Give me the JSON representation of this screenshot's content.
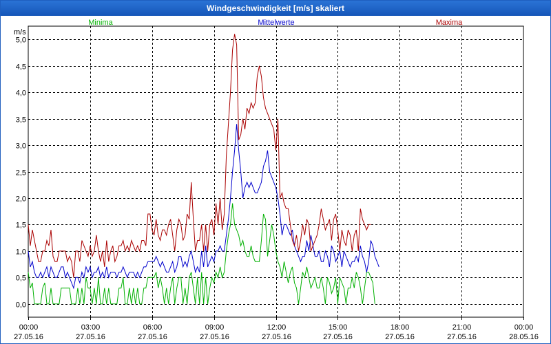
{
  "window": {
    "title": "Windgeschwindigkeit [m/s] skaliert"
  },
  "chart_data": {
    "type": "line",
    "title": "Windgeschwindigkeit [m/s] skaliert",
    "ylabel": "m/s",
    "ylim": [
      -0.25,
      5.25
    ],
    "yticks": [
      0.0,
      0.5,
      1.0,
      1.5,
      2.0,
      2.5,
      3.0,
      3.5,
      4.0,
      4.5,
      5.0
    ],
    "ytick_labels": [
      "0,0",
      "0,5",
      "1,0",
      "1,5",
      "2,0",
      "2,5",
      "3,0",
      "3,5",
      "4,0",
      "4,5",
      "5,0"
    ],
    "xlim_hours": [
      0,
      24
    ],
    "xticks_hours": [
      0,
      3,
      6,
      9,
      12,
      15,
      18,
      21,
      24
    ],
    "xtick_times": [
      "00:00",
      "03:00",
      "06:00",
      "09:00",
      "12:00",
      "15:00",
      "18:00",
      "21:00",
      "00:00"
    ],
    "xtick_dates": [
      "27.05.16",
      "27.05.16",
      "27.05.16",
      "27.05.16",
      "27.05.16",
      "27.05.16",
      "27.05.16",
      "27.05.16",
      "28.05.16"
    ],
    "grid": true,
    "legend_position": "top",
    "x_step_hours": 0.1,
    "series": [
      {
        "name": "Minima",
        "color": "#00b000",
        "values": [
          0.6,
          0.3,
          0.4,
          0.0,
          0.0,
          0.0,
          0.0,
          0.3,
          0.4,
          0.0,
          0.0,
          0.3,
          0.0,
          0.0,
          0.0,
          0.0,
          0.3,
          0.3,
          0.3,
          0.3,
          0.3,
          0.0,
          0.0,
          0.0,
          0.3,
          0.0,
          0.3,
          0.0,
          0.5,
          0.3,
          0.3,
          0.0,
          0.3,
          0.0,
          0.5,
          0.0,
          0.0,
          0.3,
          0.0,
          0.3,
          0.0,
          0.0,
          0.0,
          0.0,
          0.3,
          0.3,
          0.5,
          0.0,
          0.0,
          0.3,
          0.0,
          0.3,
          0.0,
          0.3,
          0.0,
          0.0,
          0.3,
          0.3,
          0.5,
          0.5,
          0.5,
          0.5,
          0.6,
          0.3,
          0.5,
          0.3,
          0.0,
          0.3,
          0.0,
          0.3,
          0.5,
          0.0,
          0.3,
          0.5,
          0.5,
          0.0,
          0.3,
          0.0,
          0.5,
          0.6,
          0.3,
          0.0,
          0.5,
          0.0,
          0.6,
          0.0,
          0.5,
          0.0,
          0.3,
          0.5,
          0.4,
          0.6,
          0.5,
          0.7,
          0.5,
          0.6,
          1.0,
          1.3,
          1.5,
          1.9,
          1.5,
          1.4,
          1.3,
          1.1,
          1.2,
          1.0,
          0.9,
          0.9,
          1.1,
          0.9,
          0.8,
          0.8,
          0.8,
          1.2,
          1.7,
          1.6,
          0.9,
          1.2,
          1.5,
          1.3,
          1.0,
          0.8,
          0.7,
          0.5,
          0.8,
          0.6,
          0.4,
          0.6,
          0.7,
          0.4,
          0.3,
          0.0,
          0.3,
          0.6,
          0.5,
          0.7,
          0.5,
          0.3,
          0.4,
          0.5,
          0.3,
          0.3,
          0.5,
          0.3,
          0.0,
          0.5,
          0.4,
          0.2,
          0.3,
          0.5,
          0.0,
          0.5,
          0.4,
          0.3,
          0.0,
          0.3,
          0.3,
          0.5,
          0.3,
          0.6,
          0.5,
          0.3,
          0.0,
          0.3,
          0.6,
          0.6,
          0.5,
          0.4,
          0.0
        ]
      },
      {
        "name": "Mittelwerte",
        "color": "#0000cc",
        "values": [
          1.0,
          0.7,
          0.8,
          0.6,
          0.5,
          0.5,
          0.6,
          0.5,
          0.6,
          0.7,
          0.5,
          0.7,
          0.6,
          0.5,
          0.5,
          0.6,
          0.7,
          0.7,
          0.5,
          0.6,
          0.5,
          0.4,
          0.3,
          0.5,
          0.5,
          0.4,
          0.6,
          0.5,
          0.7,
          0.6,
          0.7,
          0.5,
          0.6,
          0.6,
          0.7,
          0.5,
          0.6,
          0.5,
          0.7,
          0.5,
          0.6,
          0.6,
          0.6,
          0.5,
          0.6,
          0.6,
          0.7,
          0.6,
          0.5,
          0.6,
          0.6,
          0.6,
          0.5,
          0.6,
          0.5,
          0.6,
          0.7,
          0.7,
          0.8,
          0.8,
          0.8,
          0.8,
          0.9,
          0.8,
          0.7,
          0.8,
          0.7,
          0.6,
          0.6,
          0.7,
          0.8,
          0.6,
          0.7,
          0.9,
          0.9,
          0.7,
          0.8,
          0.7,
          0.9,
          1.0,
          0.8,
          0.6,
          0.7,
          0.6,
          1.0,
          0.7,
          1.1,
          0.7,
          0.8,
          0.9,
          0.8,
          1.0,
          1.0,
          1.1,
          1.0,
          1.0,
          1.3,
          1.6,
          2.0,
          2.5,
          2.9,
          3.4,
          2.9,
          2.5,
          2.0,
          2.2,
          2.3,
          2.2,
          2.3,
          2.2,
          2.1,
          2.1,
          2.2,
          2.3,
          2.6,
          2.7,
          2.9,
          2.5,
          2.4,
          2.3,
          2.2,
          2.0,
          1.7,
          1.3,
          1.5,
          1.5,
          1.4,
          1.3,
          1.4,
          1.1,
          1.0,
          0.9,
          0.8,
          0.9,
          0.9,
          1.2,
          1.0,
          1.3,
          1.1,
          0.9,
          0.9,
          1.0,
          0.8,
          0.8,
          1.0,
          0.9,
          0.7,
          1.1,
          1.0,
          0.8,
          0.9,
          1.0,
          0.7,
          1.0,
          0.9,
          0.8,
          0.7,
          0.8,
          0.8,
          0.9,
          0.8,
          1.1,
          0.9,
          0.8,
          0.6,
          0.8,
          1.2,
          1.1,
          0.9,
          0.8,
          0.7
        ]
      },
      {
        "name": "Maxima",
        "color": "#aa0000",
        "values": [
          1.5,
          1.1,
          1.4,
          1.2,
          1.0,
          0.8,
          0.8,
          1.0,
          1.0,
          1.2,
          1.1,
          1.4,
          0.9,
          0.8,
          0.8,
          1.0,
          1.0,
          1.0,
          1.0,
          0.8,
          0.9,
          0.8,
          0.5,
          1.0,
          1.0,
          0.8,
          1.2,
          1.1,
          1.0,
          0.9,
          1.1,
          0.9,
          1.0,
          1.3,
          1.0,
          0.8,
          1.0,
          0.7,
          1.2,
          0.8,
          1.0,
          1.1,
          0.8,
          0.9,
          1.1,
          1.1,
          1.2,
          1.0,
          1.1,
          1.0,
          1.2,
          1.1,
          1.0,
          1.1,
          1.0,
          1.2,
          1.2,
          1.1,
          1.7,
          1.7,
          1.4,
          1.3,
          1.6,
          1.3,
          1.2,
          1.4,
          1.4,
          1.3,
          1.5,
          1.6,
          1.3,
          1.0,
          1.4,
          1.6,
          1.5,
          1.2,
          1.3,
          1.7,
          1.6,
          2.3,
          1.6,
          1.0,
          1.2,
          1.2,
          1.5,
          1.0,
          1.5,
          1.0,
          1.5,
          1.6,
          1.3,
          1.9,
          1.5,
          2.0,
          1.4,
          1.7,
          2.8,
          3.4,
          4.0,
          4.8,
          5.1,
          4.9,
          3.1,
          3.2,
          3.5,
          3.3,
          3.7,
          3.6,
          3.8,
          3.7,
          3.8,
          4.3,
          4.5,
          4.3,
          3.9,
          3.7,
          3.6,
          3.5,
          3.4,
          3.3,
          2.9,
          3.5,
          2.0,
          2.1,
          1.9,
          1.8,
          1.8,
          1.5,
          1.2,
          1.1,
          1.3,
          1.0,
          1.2,
          1.5,
          1.3,
          1.6,
          1.5,
          1.0,
          1.1,
          1.2,
          1.3,
          1.5,
          1.8,
          1.6,
          1.4,
          1.5,
          1.6,
          1.2,
          1.6,
          1.7,
          1.4,
          1.0,
          1.4,
          1.2,
          1.1,
          1.4,
          1.3,
          1.0,
          1.3,
          1.4,
          1.0,
          1.8,
          1.6,
          1.5,
          1.4,
          1.5,
          1.5
        ]
      }
    ]
  }
}
